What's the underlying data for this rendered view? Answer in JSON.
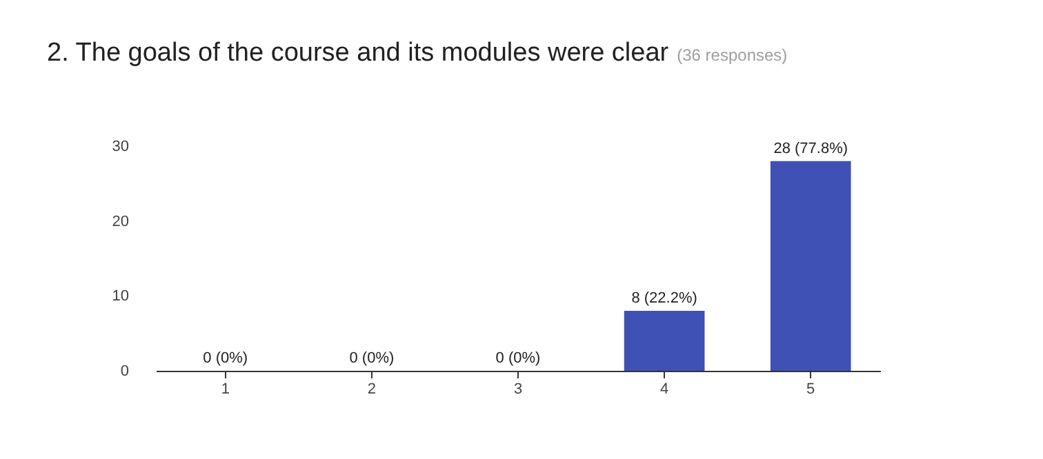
{
  "chart_data": {
    "type": "bar",
    "title": "2. The goals of the course and its modules were clear",
    "subtitle": "(36 responses)",
    "categories": [
      "1",
      "2",
      "3",
      "4",
      "5"
    ],
    "values": [
      0,
      0,
      0,
      8,
      28
    ],
    "value_labels": [
      "0 (0%)",
      "0 (0%)",
      "0 (0%)",
      "8 (22.2%)",
      "28 (77.8%)"
    ],
    "color": "#3f51b5",
    "ylim": [
      0,
      30
    ],
    "yticks": [
      0,
      10,
      20,
      30
    ],
    "grid": false
  }
}
